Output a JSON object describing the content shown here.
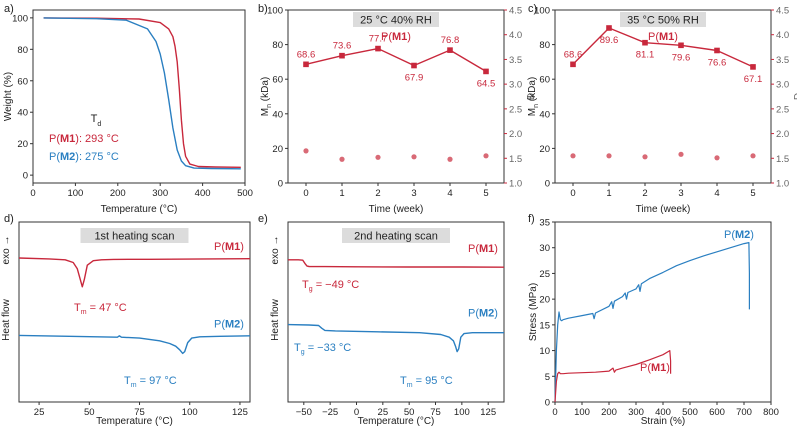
{
  "colors": {
    "m1": "#c8283c",
    "m2": "#2a7fc1",
    "axis": "#333333",
    "rh_box": "#dcdcdc"
  },
  "chart_data": [
    {
      "id": "a",
      "panel_label": "a)",
      "type": "line",
      "title": "",
      "xlabel": "Temperature (°C)",
      "ylabel": "Weight (%)",
      "xlim": [
        0,
        500
      ],
      "ylim": [
        -5,
        105
      ],
      "xticks": [
        0,
        100,
        200,
        300,
        400,
        500
      ],
      "yticks": [
        0,
        20,
        40,
        60,
        80,
        100
      ],
      "annotation_title": "T",
      "annotation_sub": "d",
      "series": [
        {
          "name": "M1",
          "label_pre": "P(",
          "label_bold": "M1",
          "label_post": "): 293 °C",
          "x": [
            25,
            150,
            250,
            300,
            320,
            330,
            335,
            340,
            345,
            350,
            355,
            360,
            370,
            390,
            430,
            490
          ],
          "y": [
            100,
            99.8,
            99.3,
            97,
            93,
            88,
            82,
            72,
            55,
            35,
            20,
            12,
            7,
            5.5,
            5.2,
            5
          ]
        },
        {
          "name": "M2",
          "label_pre": "P(",
          "label_bold": "M2",
          "label_post": "): 275 °C",
          "x": [
            25,
            150,
            220,
            270,
            290,
            300,
            310,
            320,
            330,
            340,
            350,
            360,
            380,
            420,
            490
          ],
          "y": [
            100,
            99.5,
            98.5,
            93,
            85,
            77,
            65,
            48,
            30,
            16,
            9,
            6,
            4.5,
            4.2,
            4
          ]
        }
      ]
    },
    {
      "id": "b",
      "panel_label": "b)",
      "type": "line+scatter",
      "condition": "25 °C 40% RH",
      "polymer_pre": "P(",
      "polymer_bold": "M1",
      "polymer_post": ")",
      "xlabel": "Time (week)",
      "ylabel": "M",
      "ylabel_sub": "n",
      "ylabel_post": " (kDa)",
      "y2label": "Đ",
      "xlim": [
        -0.5,
        5.5
      ],
      "ylim": [
        0,
        100
      ],
      "y2lim": [
        1.0,
        4.5
      ],
      "xticks": [
        0,
        1,
        2,
        3,
        4,
        5
      ],
      "yticks": [
        0,
        20,
        40,
        60,
        80,
        100
      ],
      "y2ticks": [
        1.0,
        1.5,
        2.0,
        2.5,
        3.0,
        3.5,
        4.0,
        4.5
      ],
      "x": [
        0,
        1,
        2,
        3,
        4,
        5
      ],
      "mn": [
        68.6,
        73.6,
        77.7,
        67.9,
        76.8,
        64.5
      ],
      "mn_labels": [
        "68.6",
        "73.6",
        "77.7",
        "67.9",
        "76.8",
        "64.5"
      ],
      "dispersity": [
        1.65,
        1.48,
        1.52,
        1.53,
        1.48,
        1.55
      ]
    },
    {
      "id": "c",
      "panel_label": "c)",
      "type": "line+scatter",
      "condition": "35 °C 50% RH",
      "polymer_pre": "P(",
      "polymer_bold": "M1",
      "polymer_post": ")",
      "xlabel": "Time (week)",
      "ylabel": "M",
      "ylabel_sub": "n",
      "ylabel_post": " (kDa)",
      "y2label": "Đ",
      "xlim": [
        -0.5,
        5.5
      ],
      "ylim": [
        0,
        100
      ],
      "y2lim": [
        1.0,
        4.5
      ],
      "xticks": [
        0,
        1,
        2,
        3,
        4,
        5
      ],
      "yticks": [
        0,
        20,
        40,
        60,
        80,
        100
      ],
      "y2ticks": [
        1.0,
        1.5,
        2.0,
        2.5,
        3.0,
        3.5,
        4.0,
        4.5
      ],
      "x": [
        0,
        1,
        2,
        3,
        4,
        5
      ],
      "mn": [
        68.6,
        89.6,
        81.1,
        79.6,
        76.6,
        67.1
      ],
      "mn_labels": [
        "68.6",
        "89.6",
        "81.1",
        "79.6",
        "76.6",
        "67.1"
      ],
      "dispersity": [
        1.55,
        1.55,
        1.53,
        1.58,
        1.51,
        1.55
      ]
    },
    {
      "id": "d",
      "panel_label": "d)",
      "type": "line",
      "condition": "1st heating scan",
      "exo_label": "exo →",
      "xlabel": "Temperature (°C)",
      "ylabel": "Heat flow",
      "xlim": [
        15,
        130
      ],
      "ylim": [
        0,
        1
      ],
      "xticks": [
        25,
        50,
        75,
        100,
        125
      ],
      "series": [
        {
          "name": "M1",
          "label_pre": "P(",
          "label_bold": "M1",
          "label_post": ")",
          "ann_pre": "T",
          "ann_sub": "m",
          "ann_post": " = 47 °C",
          "x": [
            15,
            30,
            38,
            42,
            44,
            45.5,
            46.5,
            47.5,
            49,
            52,
            56,
            62,
            80,
            110,
            130
          ],
          "y": [
            0.8,
            0.795,
            0.79,
            0.775,
            0.74,
            0.68,
            0.64,
            0.68,
            0.76,
            0.785,
            0.79,
            0.792,
            0.793,
            0.795,
            0.796
          ]
        },
        {
          "name": "M2",
          "label_pre": "P(",
          "label_bold": "M2",
          "label_post": ")",
          "ann_pre": "T",
          "ann_sub": "m",
          "ann_post": " = 97 °C",
          "x": [
            15,
            40,
            64,
            65,
            66,
            75,
            85,
            90,
            93,
            95,
            96.5,
            97.5,
            99,
            101,
            105,
            115,
            130
          ],
          "y": [
            0.37,
            0.365,
            0.36,
            0.368,
            0.36,
            0.355,
            0.34,
            0.325,
            0.31,
            0.29,
            0.27,
            0.28,
            0.33,
            0.355,
            0.362,
            0.365,
            0.368
          ]
        }
      ]
    },
    {
      "id": "e",
      "panel_label": "e)",
      "type": "line",
      "condition": "2nd heating scan",
      "exo_label": "exo →",
      "xlabel": "Temperature (°C)",
      "ylabel": "Heat flow",
      "xlim": [
        -65,
        140
      ],
      "ylim": [
        0,
        1
      ],
      "xticks": [
        -50,
        -25,
        0,
        25,
        50,
        75,
        100,
        125
      ],
      "series": [
        {
          "name": "M1",
          "label_pre": "P(",
          "label_bold": "M1",
          "label_post": ")",
          "ann_pre": "T",
          "ann_sub": "g",
          "ann_post": " = −49 °C",
          "x": [
            -65,
            -55,
            -51,
            -49,
            -47,
            -45,
            -30,
            0,
            50,
            100,
            140
          ],
          "y": [
            0.79,
            0.79,
            0.788,
            0.77,
            0.755,
            0.753,
            0.752,
            0.751,
            0.75,
            0.75,
            0.749
          ]
        },
        {
          "name": "M2",
          "label_pre": "P(",
          "label_bold": "M2",
          "label_post": ")",
          "ann_pre": "T",
          "ann_sub": "g",
          "ann_post": " = −33 °C",
          "x": [
            -65,
            -45,
            -36,
            -33,
            -30,
            -20,
            20,
            60,
            80,
            88,
            92,
            94,
            95.5,
            97,
            99,
            102,
            110,
            140
          ],
          "y": [
            0.43,
            0.428,
            0.425,
            0.41,
            0.398,
            0.395,
            0.39,
            0.385,
            0.375,
            0.36,
            0.34,
            0.31,
            0.28,
            0.295,
            0.36,
            0.38,
            0.385,
            0.385
          ]
        }
      ]
    },
    {
      "id": "f",
      "panel_label": "f)",
      "type": "line",
      "xlabel": "Strain (%)",
      "ylabel": "Stress (MPa)",
      "xlim": [
        0,
        800
      ],
      "ylim": [
        0,
        35
      ],
      "xticks": [
        0,
        100,
        200,
        300,
        400,
        500,
        600,
        700,
        800
      ],
      "yticks": [
        0,
        5,
        10,
        15,
        20,
        25,
        30,
        35
      ],
      "series": [
        {
          "name": "M2",
          "label_pre": "P(",
          "label_bold": "M2",
          "label_post": ")",
          "x": [
            0,
            5,
            10,
            15,
            20,
            25,
            30,
            50,
            100,
            140,
            145,
            150,
            200,
            210,
            215,
            220,
            250,
            260,
            265,
            270,
            300,
            310,
            315,
            320,
            350,
            400,
            450,
            500,
            550,
            600,
            650,
            700,
            718,
            720,
            720
          ],
          "y": [
            0,
            10,
            15,
            17.5,
            16,
            15.8,
            16,
            16.3,
            16.8,
            17.2,
            16.2,
            17.3,
            18.6,
            19.5,
            18.2,
            19.6,
            20.5,
            21.2,
            20,
            21.3,
            22,
            22.8,
            21.5,
            23,
            24,
            25.2,
            26.5,
            27.5,
            28.4,
            29.2,
            30,
            30.8,
            31,
            25,
            18
          ]
        },
        {
          "name": "M1",
          "label_pre": "P(",
          "label_bold": "M1",
          "label_post": ")",
          "x": [
            0,
            5,
            10,
            15,
            20,
            30,
            50,
            100,
            150,
            200,
            215,
            220,
            225,
            250,
            300,
            350,
            400,
            425,
            428,
            428
          ],
          "y": [
            0,
            4,
            5.5,
            5.8,
            5.5,
            5.5,
            5.6,
            5.7,
            5.8,
            6.0,
            6.6,
            5.8,
            6.2,
            6.6,
            7.3,
            8.2,
            9.2,
            10.0,
            8,
            5.5
          ]
        }
      ]
    }
  ]
}
